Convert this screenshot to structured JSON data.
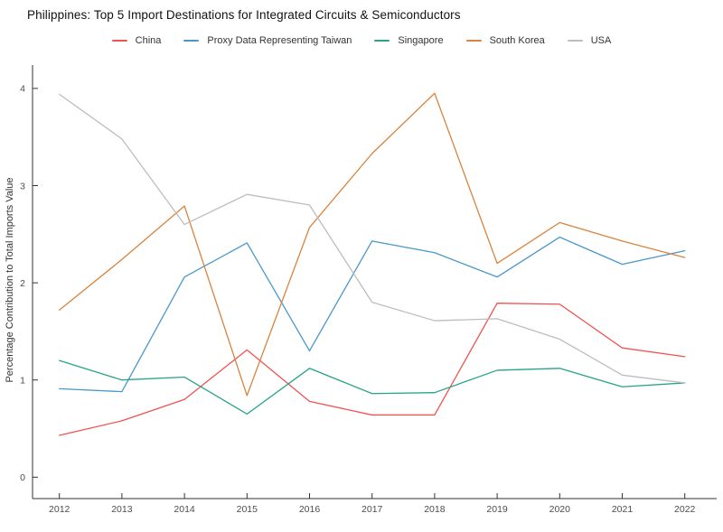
{
  "title": "Philippines: Top 5 Import Destinations for Integrated Circuits & Semiconductors",
  "chart_data": {
    "type": "line",
    "title": "Philippines: Top 5 Import Destinations for Integrated Circuits & Semiconductors",
    "x": [
      2012,
      2013,
      2014,
      2015,
      2016,
      2017,
      2018,
      2019,
      2020,
      2021,
      2022
    ],
    "xlabel": "",
    "ylabel": "Percentage Contribution to Total Imports Value",
    "ylim": [
      0,
      4
    ],
    "yticks": [
      0,
      1,
      2,
      3,
      4
    ],
    "grid": false,
    "legend_position": "top-center",
    "axis_color": "#333333",
    "tick_label_color": "#4d4d4d",
    "series": [
      {
        "name": "China",
        "color": "#ef5350",
        "values": [
          0.43,
          0.58,
          0.8,
          1.31,
          0.78,
          0.64,
          0.64,
          1.79,
          1.78,
          1.33,
          1.24
        ]
      },
      {
        "name": "Proxy Data Representing Taiwan",
        "color": "#4a98c9",
        "values": [
          0.91,
          0.88,
          2.06,
          2.41,
          1.3,
          2.43,
          2.31,
          2.06,
          2.47,
          2.19,
          2.33
        ]
      },
      {
        "name": "Singapore",
        "color": "#26a487",
        "values": [
          1.2,
          1.0,
          1.03,
          0.65,
          1.12,
          0.86,
          0.87,
          1.1,
          1.12,
          0.93,
          0.97
        ]
      },
      {
        "name": "South Korea",
        "color": "#d9833d",
        "values": [
          1.72,
          2.24,
          2.79,
          0.84,
          2.57,
          3.33,
          3.95,
          2.2,
          2.62,
          2.43,
          2.26
        ]
      },
      {
        "name": "USA",
        "color": "#bdbdbd",
        "values": [
          3.94,
          3.48,
          2.6,
          2.91,
          2.8,
          1.8,
          1.61,
          1.63,
          1.42,
          1.05,
          0.97
        ]
      }
    ]
  }
}
